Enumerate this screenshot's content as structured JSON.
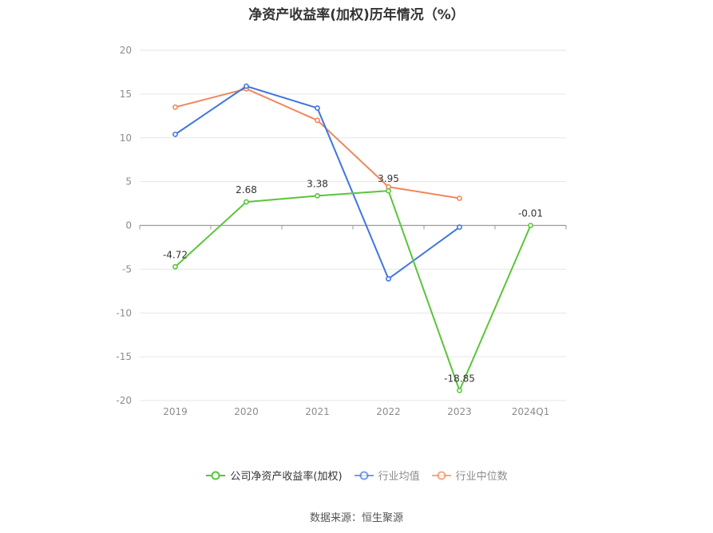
{
  "source_text": "数据来源：恒生聚源",
  "chart_data": {
    "type": "line",
    "title": "净资产收益率(加权)历年情况（%）",
    "categories": [
      "2019",
      "2020",
      "2021",
      "2022",
      "2023",
      "2024Q1"
    ],
    "ylim": [
      -20,
      20
    ],
    "yticks": [
      20,
      15,
      10,
      5,
      0,
      -5,
      -10,
      -15,
      -20
    ],
    "grid": true,
    "legend_position": "bottom",
    "series": [
      {
        "name": "公司净资产收益率(加权)",
        "color": "#5ac53a",
        "values": [
          -4.72,
          2.68,
          3.38,
          3.95,
          -18.85,
          -0.01
        ],
        "labels": [
          "-4.72",
          "2.68",
          "3.38",
          "3.95",
          "-18.85",
          "-0.01"
        ]
      },
      {
        "name": "行业均值",
        "color": "#3f76e0",
        "values": [
          10.4,
          15.9,
          13.4,
          -6.1,
          -0.2,
          null
        ]
      },
      {
        "name": "行业中位数",
        "color": "#f0875a",
        "values": [
          13.5,
          15.6,
          12.0,
          4.4,
          3.1,
          null
        ]
      }
    ]
  }
}
